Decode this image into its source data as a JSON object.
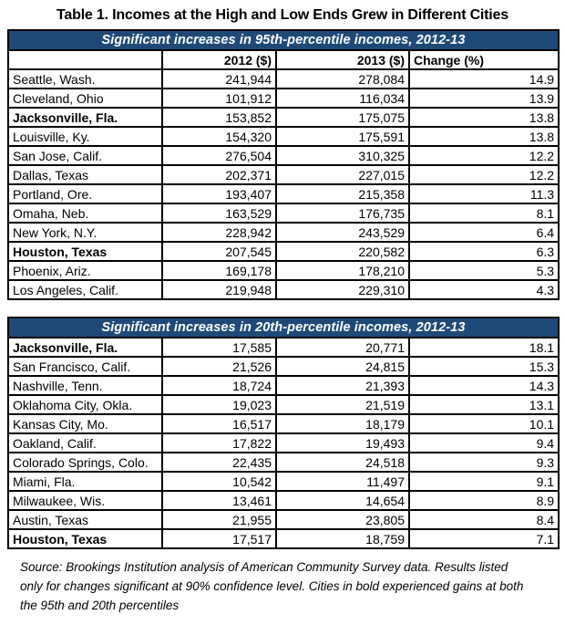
{
  "title": "Table 1. Incomes at the High and Low Ends Grew in Different Cities",
  "columns": [
    "",
    "2012 ($)",
    "2013 ($)",
    "Change (%)"
  ],
  "accent_color": "#1f4a78",
  "footnote": "Source: Brookings Institution analysis of American Community Survey data. Results listed only for changes significant at 90% confidence level. Cities in bold experienced gains at both the 95th and 20th percentiles",
  "chart_data": [
    {
      "type": "table",
      "title": "Significant increases in 95th-percentile incomes, 2012-13",
      "columns": [
        "",
        "2012 ($)",
        "2013 ($)",
        "Change (%)"
      ],
      "show_column_headers": true,
      "rows": [
        {
          "city": "Seattle, Wash.",
          "v2012": "241,944",
          "v2013": "278,084",
          "change": "14.9",
          "bold": false
        },
        {
          "city": "Cleveland, Ohio",
          "v2012": "101,912",
          "v2013": "116,034",
          "change": "13.9",
          "bold": false
        },
        {
          "city": "Jacksonville, Fla.",
          "v2012": "153,852",
          "v2013": "175,075",
          "change": "13.8",
          "bold": true
        },
        {
          "city": "Louisville, Ky.",
          "v2012": "154,320",
          "v2013": "175,591",
          "change": "13.8",
          "bold": false
        },
        {
          "city": "San Jose, Calif.",
          "v2012": "276,504",
          "v2013": "310,325",
          "change": "12.2",
          "bold": false
        },
        {
          "city": "Dallas, Texas",
          "v2012": "202,371",
          "v2013": "227,015",
          "change": "12.2",
          "bold": false
        },
        {
          "city": "Portland, Ore.",
          "v2012": "193,407",
          "v2013": "215,358",
          "change": "11.3",
          "bold": false
        },
        {
          "city": "Omaha, Neb.",
          "v2012": "163,529",
          "v2013": "176,735",
          "change": "8.1",
          "bold": false
        },
        {
          "city": "New York, N.Y.",
          "v2012": "228,942",
          "v2013": "243,529",
          "change": "6.4",
          "bold": false
        },
        {
          "city": "Houston, Texas",
          "v2012": "207,545",
          "v2013": "220,582",
          "change": "6.3",
          "bold": true
        },
        {
          "city": "Phoenix, Ariz.",
          "v2012": "169,178",
          "v2013": "178,210",
          "change": "5.3",
          "bold": false
        },
        {
          "city": "Los Angeles, Calif.",
          "v2012": "219,948",
          "v2013": "229,310",
          "change": "4.3",
          "bold": false
        }
      ]
    },
    {
      "type": "table",
      "title": "Significant increases in 20th-percentile incomes, 2012-13",
      "columns": [
        "",
        "2012 ($)",
        "2013 ($)",
        "Change (%)"
      ],
      "show_column_headers": false,
      "rows": [
        {
          "city": "Jacksonville, Fla.",
          "v2012": "17,585",
          "v2013": "20,771",
          "change": "18.1",
          "bold": true
        },
        {
          "city": "San Francisco, Calif.",
          "v2012": "21,526",
          "v2013": "24,815",
          "change": "15.3",
          "bold": false
        },
        {
          "city": "Nashville, Tenn.",
          "v2012": "18,724",
          "v2013": "21,393",
          "change": "14.3",
          "bold": false
        },
        {
          "city": "Oklahoma City, Okla.",
          "v2012": "19,023",
          "v2013": "21,519",
          "change": "13.1",
          "bold": false
        },
        {
          "city": "Kansas City, Mo.",
          "v2012": "16,517",
          "v2013": "18,179",
          "change": "10.1",
          "bold": false
        },
        {
          "city": "Oakland, Calif.",
          "v2012": "17,822",
          "v2013": "19,493",
          "change": "9.4",
          "bold": false
        },
        {
          "city": "Colorado Springs, Colo.",
          "v2012": "22,435",
          "v2013": "24,518",
          "change": "9.3",
          "bold": false
        },
        {
          "city": "Miami, Fla.",
          "v2012": "10,542",
          "v2013": "11,497",
          "change": "9.1",
          "bold": false
        },
        {
          "city": "Milwaukee, Wis.",
          "v2012": "13,461",
          "v2013": "14,654",
          "change": "8.9",
          "bold": false
        },
        {
          "city": "Austin, Texas",
          "v2012": "21,955",
          "v2013": "23,805",
          "change": "8.4",
          "bold": false
        },
        {
          "city": "Houston, Texas",
          "v2012": "17,517",
          "v2013": "18,759",
          "change": "7.1",
          "bold": true
        }
      ]
    }
  ]
}
